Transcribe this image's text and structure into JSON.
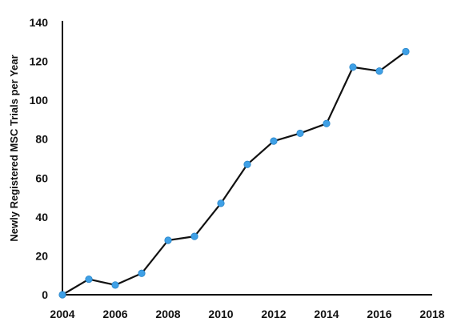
{
  "chart_data": {
    "type": "line",
    "title": "",
    "xlabel": "",
    "ylabel": "Newly Registered MSC Trials per Year",
    "xlim": [
      2004,
      2018
    ],
    "ylim": [
      0,
      140
    ],
    "x_ticks": [
      2004,
      2006,
      2008,
      2010,
      2012,
      2014,
      2016,
      2018
    ],
    "y_ticks": [
      0,
      20,
      40,
      60,
      80,
      100,
      120,
      140
    ],
    "x_tick_labels": [
      "2004",
      "2006",
      "2008",
      "2010",
      "2012",
      "2014",
      "2016",
      "2018"
    ],
    "y_tick_labels": [
      "0",
      "20",
      "40",
      "60",
      "80",
      "100",
      "120",
      "140"
    ],
    "grid": false,
    "legend": "none",
    "series": [
      {
        "x": [
          2004,
          2005,
          2006,
          2007,
          2008,
          2009,
          2010,
          2011,
          2012,
          2013,
          2014,
          2015,
          2016,
          2017
        ],
        "y": [
          0,
          8,
          5,
          11,
          28,
          30,
          47,
          67,
          79,
          83,
          88,
          117,
          115,
          125
        ],
        "line_color": "#111111",
        "marker_color": "#3fa0e6"
      }
    ]
  }
}
